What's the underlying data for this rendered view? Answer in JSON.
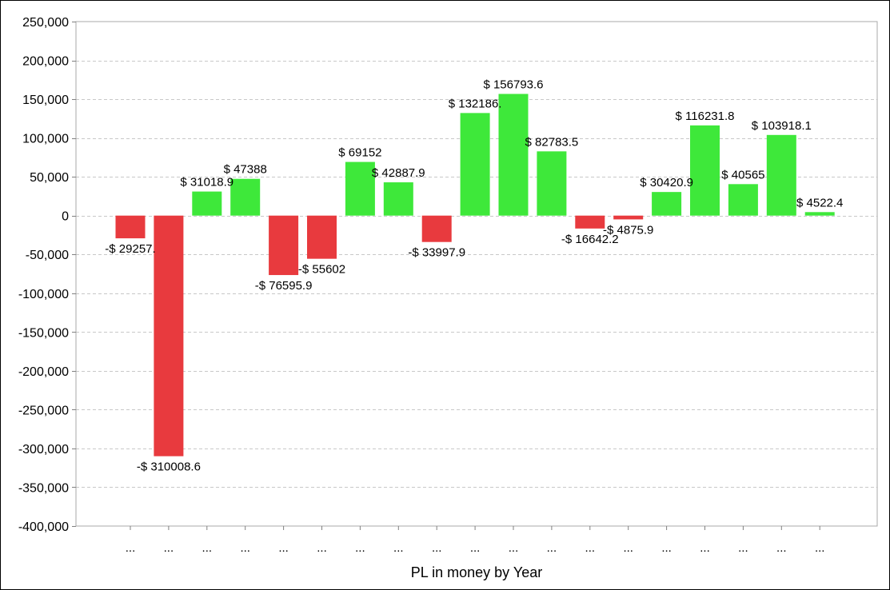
{
  "chart_data": {
    "type": "bar",
    "title": "",
    "xlabel": "PL in money by Year",
    "ylabel": "",
    "ylim": [
      -400000,
      250000
    ],
    "ytick_step": 50000,
    "grid": true,
    "categories": [
      "...",
      "...",
      "...",
      "...",
      "...",
      "...",
      "...",
      "...",
      "...",
      "...",
      "...",
      "...",
      "...",
      "...",
      "...",
      "...",
      "...",
      "...",
      "..."
    ],
    "values": [
      -29257.0,
      -310008.6,
      31018.9,
      47388,
      -76595.9,
      -55602,
      69152,
      42887.9,
      -33997.9,
      132186.0,
      156793.6,
      82783.5,
      -16642.2,
      -4875.9,
      30420.9,
      116231.8,
      40565,
      103918.1,
      4522.4
    ],
    "data_labels": [
      "-$ 29257.",
      "-$ 310008.6",
      "$ 31018.9",
      "$ 47388",
      "-$ 76595.9",
      "-$ 55602",
      "$ 69152",
      "$ 42887.9",
      "-$ 33997.9",
      "$ 132186.",
      "$ 156793.6",
      "$ 82783.5",
      "-$ 16642.2",
      "-$ 4875.9",
      "$ 30420.9",
      "$ 116231.8",
      "$ 40565",
      "$ 103918.1",
      "$ 4522.4"
    ],
    "colors": {
      "positive": "#3ee83a",
      "negative": "#e83a3e"
    }
  }
}
